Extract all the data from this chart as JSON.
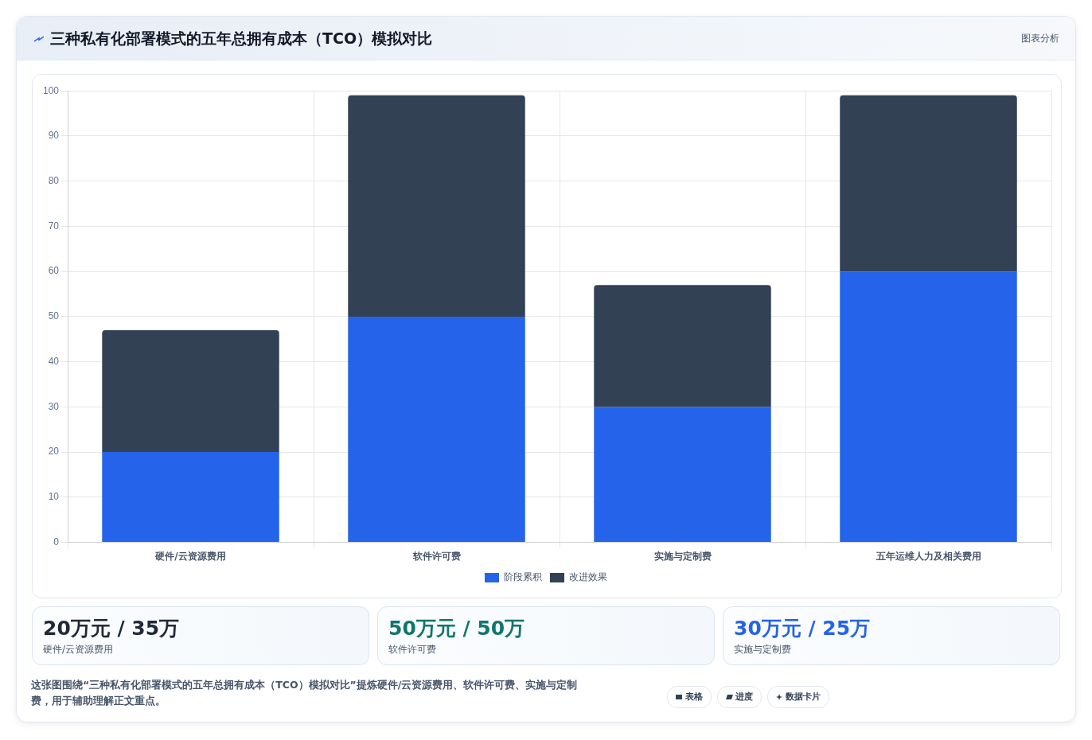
{
  "chart_data": {
    "type": "bar",
    "title": "三种私有化部署模式的五年总拥有成本（TCO）模拟对比",
    "categories": [
      "硬件/云资源费用",
      "软件许可费",
      "实施与定制费",
      "五年运维人力及相关费用"
    ],
    "series": [
      {
        "name": "阶段累积",
        "color": "#2563eb",
        "values": [
          20,
          50,
          30,
          60
        ]
      },
      {
        "name": "改进效果",
        "color": "#334155",
        "values": [
          27,
          49,
          27,
          39
        ]
      }
    ],
    "stacked": true,
    "ylim": [
      0,
      100
    ],
    "yticks": [
      0,
      10,
      20,
      30,
      40,
      50,
      60,
      70,
      80,
      90,
      100
    ],
    "grid": true,
    "legend": "bottom",
    "annotations": [
      "图表分析",
      "20万元 / 35万",
      "硬件/云资源费用",
      "50万元 / 50万",
      "软件许可费",
      "30万元 / 25万",
      "实施与定制费",
      "这张图围绕“三种私有化部署模式的五年总拥有成本（TCO）模拟对比”提炼硬件/云资源费用、软件许可费、实施与定制费，用于辅助理解正文重点。",
      "表格",
      "进度",
      "数据卡片"
    ]
  }
}
